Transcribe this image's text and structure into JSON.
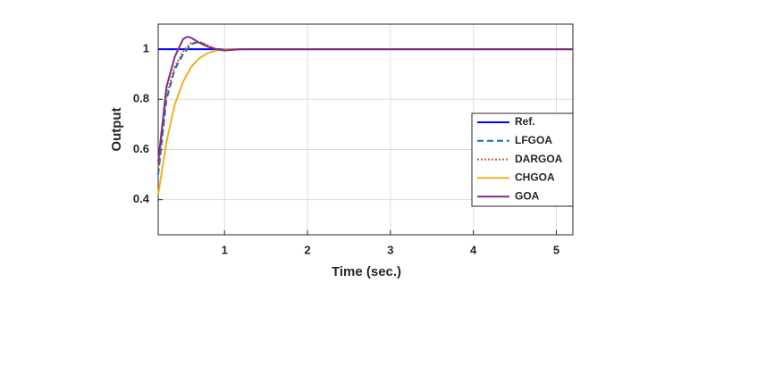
{
  "chart_data": {
    "type": "line",
    "xlabel": "Time (sec.)",
    "ylabel": "Output",
    "x": [
      0.2,
      0.3,
      0.4,
      0.5,
      0.55,
      0.6,
      0.7,
      0.8,
      0.9,
      1.0,
      1.2,
      1.5,
      2,
      3,
      4,
      5,
      5.2
    ],
    "series": [
      {
        "name": "Ref.",
        "color": "#0000ff",
        "dash": "solid",
        "values": [
          1,
          1,
          1,
          1,
          1,
          1,
          1,
          1,
          1,
          1,
          1,
          1,
          1,
          1,
          1,
          1,
          1
        ]
      },
      {
        "name": "LFGOA",
        "color": "#0072bd",
        "dash": "dashed",
        "values": [
          0.5,
          0.8,
          0.92,
          0.98,
          1.0,
          1.02,
          1.03,
          1.01,
          1.0,
          0.995,
          1,
          1,
          1,
          1,
          1,
          1,
          1
        ]
      },
      {
        "name": "DARGOA",
        "color": "#d95319",
        "dash": "dotted",
        "values": [
          0.52,
          0.82,
          0.93,
          0.99,
          1.01,
          1.025,
          1.03,
          1.015,
          1.0,
          0.995,
          1,
          1,
          1,
          1,
          1,
          1,
          1
        ]
      },
      {
        "name": "CHGOA",
        "color": "#edb120",
        "dash": "solid",
        "values": [
          0.42,
          0.63,
          0.78,
          0.87,
          0.9,
          0.93,
          0.965,
          0.985,
          0.995,
          1.0,
          1,
          1,
          1,
          1,
          1,
          1,
          1
        ]
      },
      {
        "name": "GOA",
        "color": "#7e2f8e",
        "dash": "solid",
        "values": [
          0.55,
          0.85,
          0.97,
          1.04,
          1.05,
          1.045,
          1.025,
          1.01,
          1.0,
          0.995,
          1,
          1,
          1,
          1,
          1,
          1,
          1
        ]
      }
    ],
    "xlim": [
      0.2,
      5.2
    ],
    "xticks": [
      1,
      2,
      3,
      4,
      5
    ],
    "ylim": [
      0.26,
      1.1
    ],
    "yticks": [
      0.4,
      0.6,
      0.8,
      1
    ],
    "grid": true,
    "legend": "right"
  }
}
